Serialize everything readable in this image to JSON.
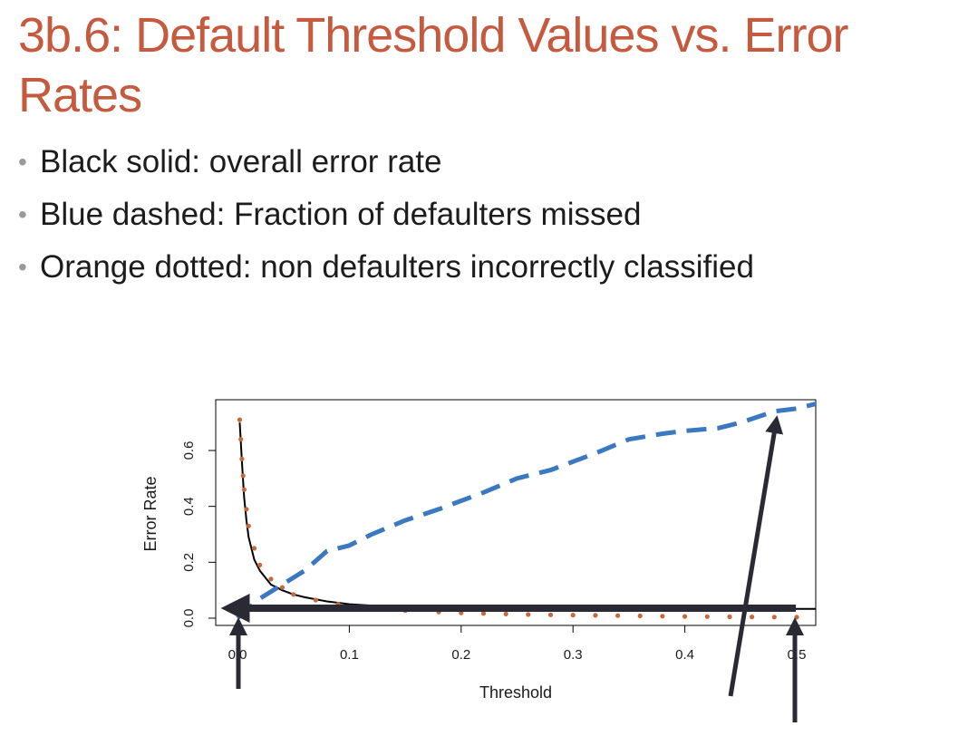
{
  "slide": {
    "title": "3b.6: Default Threshold Values vs. Error Rates",
    "bullets": [
      "Black solid: overall error rate",
      "Blue dashed: Fraction of defaulters missed",
      "Orange dotted: non defaulters incorrectly classified"
    ]
  },
  "colors": {
    "title": "#c55a3f",
    "overall": "#000000",
    "missed": "#3a78c2",
    "misclassified": "#c8693a",
    "annotation_arrow": "#2a2a35"
  },
  "chart_data": {
    "type": "line",
    "xlabel": "Threshold",
    "ylabel": "Error Rate",
    "xlim": [
      0,
      0.52
    ],
    "ylim": [
      0,
      0.76
    ],
    "xticks": [
      "0.0",
      "0.1",
      "0.2",
      "0.3",
      "0.4",
      "0.5"
    ],
    "yticks": [
      "0.0",
      "0.2",
      "0.4",
      "0.6"
    ],
    "grid": false,
    "legend": "none",
    "series": [
      {
        "style": "solid",
        "color": "#000000",
        "x": [
          0.002,
          0.004,
          0.006,
          0.008,
          0.01,
          0.015,
          0.02,
          0.03,
          0.04,
          0.05,
          0.06,
          0.08,
          0.1,
          0.12,
          0.15,
          0.2,
          0.3,
          0.4,
          0.52
        ],
        "y": [
          0.7,
          0.56,
          0.43,
          0.35,
          0.29,
          0.21,
          0.17,
          0.12,
          0.1,
          0.085,
          0.075,
          0.06,
          0.05,
          0.045,
          0.04,
          0.035,
          0.033,
          0.033,
          0.033
        ]
      },
      {
        "style": "dashed",
        "color": "#3a78c2",
        "x": [
          0.0,
          0.02,
          0.04,
          0.06,
          0.08,
          0.1,
          0.12,
          0.15,
          0.18,
          0.2,
          0.22,
          0.25,
          0.28,
          0.3,
          0.32,
          0.35,
          0.38,
          0.4,
          0.43,
          0.45,
          0.48,
          0.5,
          0.52
        ],
        "y": [
          0.0,
          0.07,
          0.12,
          0.17,
          0.24,
          0.26,
          0.3,
          0.35,
          0.39,
          0.42,
          0.45,
          0.5,
          0.53,
          0.56,
          0.59,
          0.64,
          0.66,
          0.67,
          0.68,
          0.7,
          0.74,
          0.75,
          0.77
        ]
      },
      {
        "style": "dotted",
        "color": "#c8693a",
        "x": [
          0.002,
          0.003,
          0.004,
          0.005,
          0.006,
          0.008,
          0.01,
          0.015,
          0.02,
          0.03,
          0.04,
          0.05,
          0.07,
          0.09,
          0.11,
          0.13,
          0.15,
          0.18,
          0.2,
          0.22,
          0.24,
          0.26,
          0.28,
          0.3,
          0.32,
          0.34,
          0.36,
          0.38,
          0.4,
          0.42,
          0.44,
          0.46,
          0.48,
          0.5,
          0.52
        ],
        "y": [
          0.71,
          0.64,
          0.57,
          0.51,
          0.46,
          0.39,
          0.33,
          0.25,
          0.19,
          0.14,
          0.11,
          0.085,
          0.065,
          0.05,
          0.04,
          0.032,
          0.027,
          0.022,
          0.019,
          0.017,
          0.015,
          0.013,
          0.012,
          0.011,
          0.01,
          0.009,
          0.008,
          0.007,
          0.006,
          0.0055,
          0.005,
          0.0045,
          0.004,
          0.0035,
          0.003
        ]
      }
    ]
  }
}
